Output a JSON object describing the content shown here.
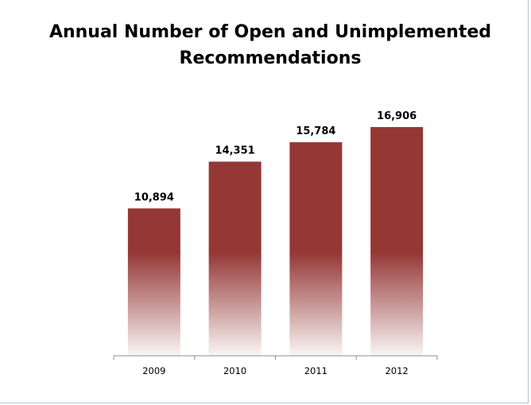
{
  "chart_data": {
    "type": "bar",
    "title": "Annual Number of Open and Unimplemented Recommendations",
    "categories": [
      "2009",
      "2010",
      "2011",
      "2012"
    ],
    "values": [
      10894,
      14351,
      15784,
      16906
    ],
    "value_labels": [
      "10,894",
      "14,351",
      "15,784",
      "16,906"
    ],
    "xlabel": "",
    "ylabel": "",
    "ylim": [
      0,
      16906
    ],
    "grid": false,
    "legend": "none",
    "bar_color": "#953735"
  }
}
